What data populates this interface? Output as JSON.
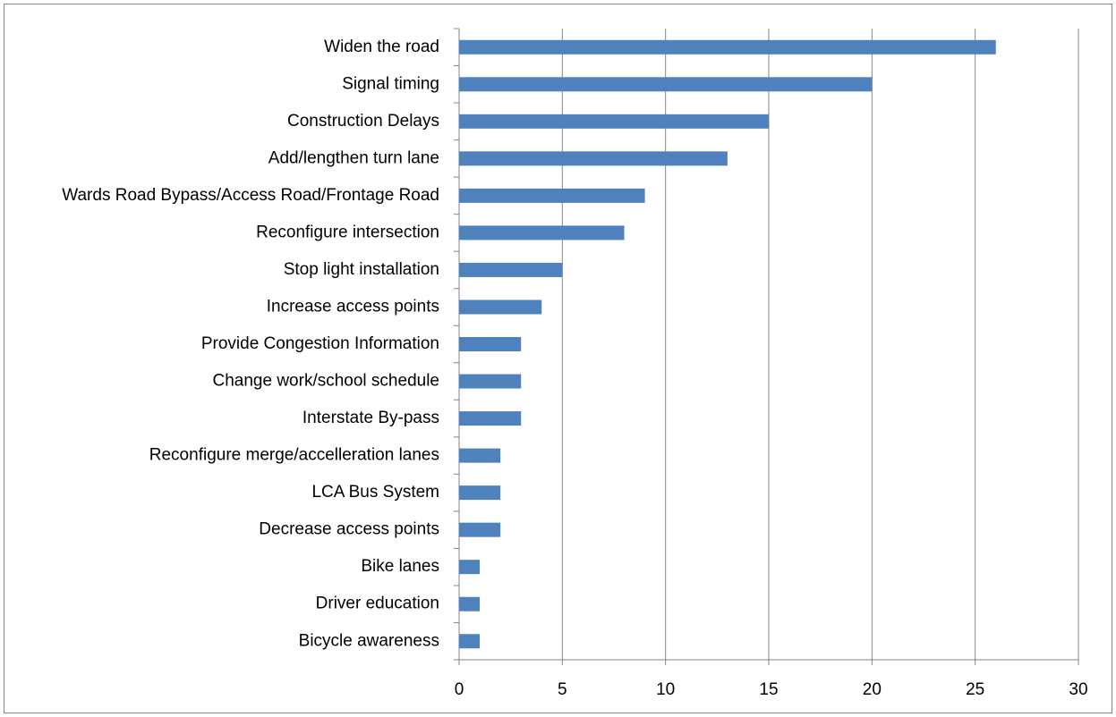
{
  "chart_data": {
    "type": "bar",
    "orientation": "horizontal",
    "categories": [
      "Widen the road",
      "Signal timing",
      "Construction Delays",
      "Add/lengthen turn lane",
      "Wards Road Bypass/Access Road/Frontage Road",
      "Reconfigure intersection",
      "Stop light installation",
      "Increase access points",
      "Provide Congestion Information",
      "Change work/school schedule",
      "Interstate By-pass",
      "Reconfigure merge/accelleration lanes",
      "LCA Bus System",
      "Decrease access points",
      "Bike lanes",
      "Driver education",
      "Bicycle awareness"
    ],
    "values": [
      26,
      20,
      15,
      13,
      9,
      8,
      5,
      4,
      3,
      3,
      3,
      2,
      2,
      2,
      1,
      1,
      1
    ],
    "color": "#4f81bd",
    "xlim": [
      0,
      30
    ],
    "xticks": [
      0,
      5,
      10,
      15,
      20,
      25,
      30
    ],
    "grid": true
  }
}
